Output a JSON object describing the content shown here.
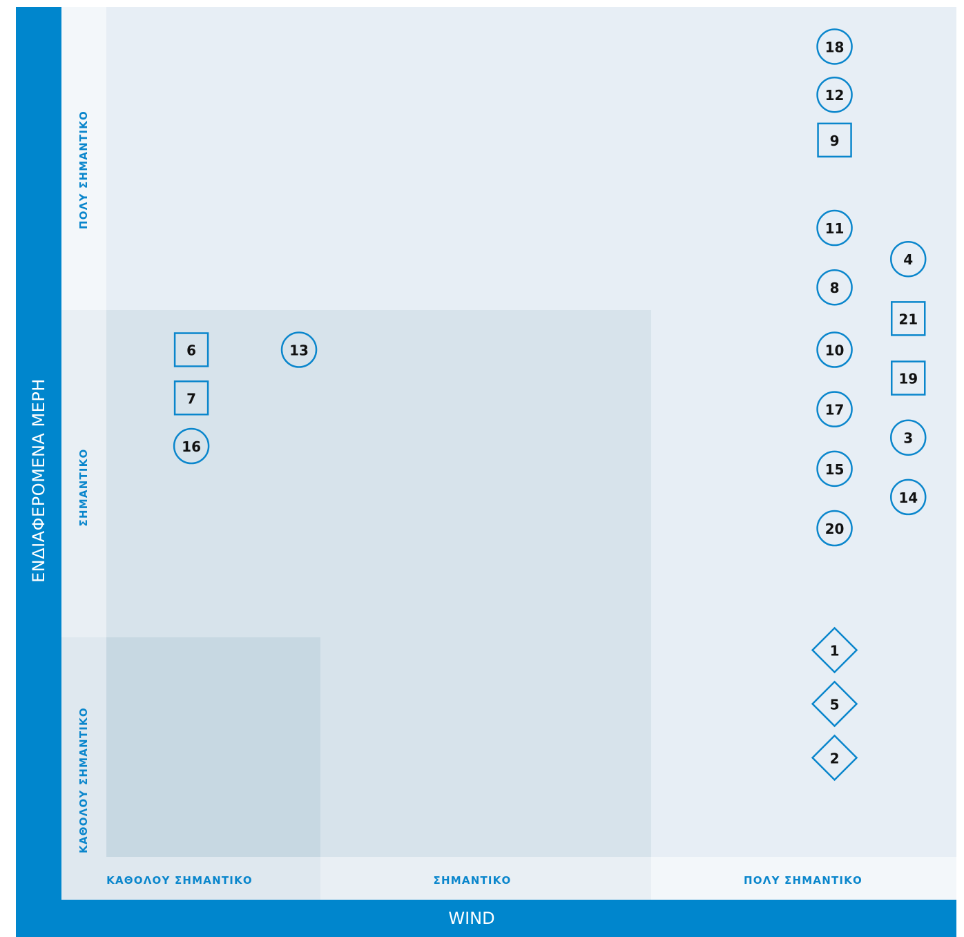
{
  "chart_data": {
    "type": "scatter",
    "xlabel": "WIND",
    "ylabel": "ΕΝΔΙΑΦΕΡΟΜΕΝΑ ΜΕΡΗ",
    "x_categories": [
      "ΚΑΘΟΛΟΥ ΣΗΜΑΝΤΙΚΟ",
      "ΣΗΜΑΝΤΙΚΟ",
      "ΠΟΛΥ ΣΗΜΑΝΤΙΚΟ"
    ],
    "y_categories": [
      "ΚΑΘΟΛΟΥ ΣΗΜΑΝΤΙΚΟ",
      "ΣΗΜΑΝΤΙΚΟ",
      "ΠΟΛΥ ΣΗΜΑΝΤΙΚΟ"
    ],
    "xlim": [
      0,
      3
    ],
    "ylim": [
      0,
      3
    ],
    "grid": false,
    "colors": {
      "band": "#0086cd",
      "marker": "#0a86cc",
      "plot_background": "#e7eef5",
      "middle_zone": "#d7e3eb",
      "low_zone": "#c7d8e2",
      "label_strip": "#f3f7fa"
    },
    "points": [
      {
        "label": "18",
        "shape": "circle",
        "x": 2.57,
        "y": 2.86
      },
      {
        "label": "12",
        "shape": "circle",
        "x": 2.57,
        "y": 2.69
      },
      {
        "label": "9",
        "shape": "square",
        "x": 2.57,
        "y": 2.53
      },
      {
        "label": "11",
        "shape": "circle",
        "x": 2.57,
        "y": 2.22
      },
      {
        "label": "4",
        "shape": "circle",
        "x": 2.83,
        "y": 2.11
      },
      {
        "label": "8",
        "shape": "circle",
        "x": 2.57,
        "y": 2.01
      },
      {
        "label": "21",
        "shape": "square",
        "x": 2.83,
        "y": 1.9
      },
      {
        "label": "10",
        "shape": "circle",
        "x": 2.57,
        "y": 1.79
      },
      {
        "label": "19",
        "shape": "square",
        "x": 2.83,
        "y": 1.69
      },
      {
        "label": "17",
        "shape": "circle",
        "x": 2.57,
        "y": 1.58
      },
      {
        "label": "3",
        "shape": "circle",
        "x": 2.83,
        "y": 1.48
      },
      {
        "label": "15",
        "shape": "circle",
        "x": 2.57,
        "y": 1.37
      },
      {
        "label": "14",
        "shape": "circle",
        "x": 2.83,
        "y": 1.27
      },
      {
        "label": "20",
        "shape": "circle",
        "x": 2.57,
        "y": 1.16
      },
      {
        "label": "1",
        "shape": "diamond",
        "x": 2.57,
        "y": 0.73
      },
      {
        "label": "5",
        "shape": "diamond",
        "x": 2.57,
        "y": 0.54
      },
      {
        "label": "2",
        "shape": "diamond",
        "x": 2.57,
        "y": 0.35
      },
      {
        "label": "6",
        "shape": "square",
        "x": 0.3,
        "y": 1.79
      },
      {
        "label": "13",
        "shape": "circle",
        "x": 0.68,
        "y": 1.79
      },
      {
        "label": "7",
        "shape": "square",
        "x": 0.3,
        "y": 1.62
      },
      {
        "label": "16",
        "shape": "circle",
        "x": 0.3,
        "y": 1.45
      }
    ]
  }
}
